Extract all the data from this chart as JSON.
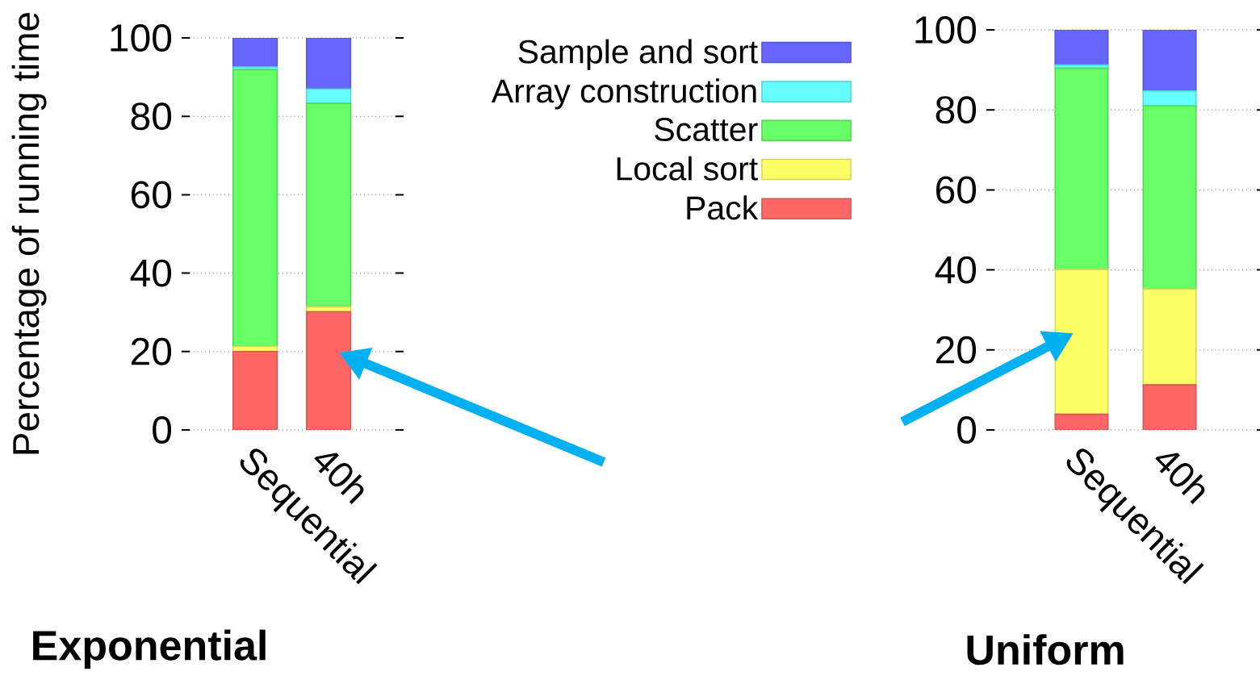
{
  "chart_data": [
    {
      "type": "bar",
      "title": "Exponential",
      "ylabel": "Percentage of running time",
      "stacked": true,
      "categories": [
        "Sequential",
        "40h"
      ],
      "ylim": [
        0,
        100
      ],
      "yticks": [
        0,
        20,
        40,
        60,
        80,
        100
      ],
      "grid": "y",
      "legend": "right",
      "series": [
        {
          "name": "Pack",
          "color": "#ff6666",
          "values": [
            20,
            30.2
          ]
        },
        {
          "name": "Local sort",
          "color": "#ffff66",
          "values": [
            1.3,
            1.2
          ]
        },
        {
          "name": "Scatter",
          "color": "#66ff66",
          "values": [
            70.6,
            51.9
          ]
        },
        {
          "name": "Array construction",
          "color": "#66ffff",
          "values": [
            0.7,
            3.7
          ]
        },
        {
          "name": "Sample and sort",
          "color": "#6666ff",
          "values": [
            7.4,
            13
          ]
        }
      ]
    },
    {
      "type": "bar",
      "title": "Uniform",
      "stacked": true,
      "categories": [
        "Sequential",
        "40h"
      ],
      "ylim": [
        0,
        100
      ],
      "yticks": [
        0,
        20,
        40,
        60,
        80,
        100
      ],
      "grid": "y",
      "series": [
        {
          "color": "#ff6666",
          "values": [
            3.9,
            11.3
          ]
        },
        {
          "color": "#ffff66",
          "values": [
            36.2,
            23.9
          ]
        },
        {
          "color": "#66ff66",
          "values": [
            50.3,
            45.8
          ]
        },
        {
          "color": "#66ffff",
          "values": [
            0.8,
            3.7
          ]
        },
        {
          "color": "#6666ff",
          "values": [
            8.8,
            15.3
          ]
        }
      ]
    }
  ]
}
